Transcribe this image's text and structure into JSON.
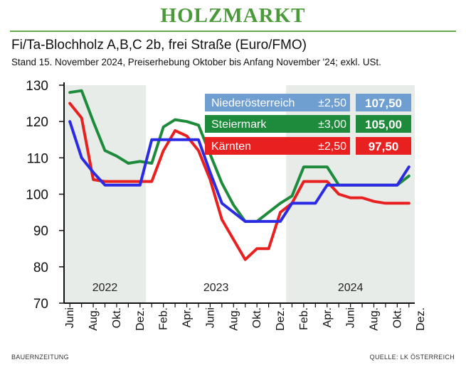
{
  "header": {
    "title": "HOLZMARKT"
  },
  "footer": {
    "left": "BAUERNZEITUNG",
    "right": "QUELLE: LK ÖSTERREICH"
  },
  "chart_data": {
    "type": "line",
    "title": "Fi/Ta-Blochholz A,B,C 2b, frei Straße (Euro/FMO)",
    "subtitle": "Stand 15. November 2024, Preiserhebung Oktober bis Anfang November '24; exkl. USt.",
    "xlabel": "",
    "ylabel": "",
    "ylim": [
      70,
      130
    ],
    "yticks": [
      "70",
      "80",
      "90",
      "100",
      "110",
      "120",
      "130"
    ],
    "x_labels": [
      "Juni",
      "Aug.",
      "Okt.",
      "Dez.",
      "Feb.",
      "Apr.",
      "Juni",
      "Aug.",
      "Okt.",
      "Dez.",
      "Feb.",
      "Apr.",
      "Juni",
      "Aug.",
      "Okt.",
      "Dez."
    ],
    "year_labels": [
      "2022",
      "2023",
      "2024"
    ],
    "grid": false,
    "legend_position": "top-right",
    "series": [
      {
        "name": "Niederösterreich",
        "range": "±2,50",
        "current": "107,50",
        "color": "#2b2be6",
        "legend_color": "#6f9ed1",
        "x": [
          0,
          1,
          2,
          3,
          4,
          5,
          6,
          7,
          8,
          9,
          10,
          11,
          12,
          13,
          14,
          15,
          16,
          17,
          18,
          19,
          20,
          21,
          22,
          23,
          24,
          25,
          26,
          27,
          28,
          29
        ],
        "values": [
          120,
          110,
          106,
          102.5,
          102.5,
          102.5,
          102.5,
          115,
          115,
          115,
          115,
          115,
          106,
          97.5,
          95,
          92.5,
          92.5,
          92.5,
          92.5,
          97.5,
          97.5,
          97.5,
          102.5,
          102.5,
          102.5,
          102.5,
          102.5,
          102.5,
          102.5,
          107.5
        ]
      },
      {
        "name": "Steiermark",
        "range": "±3,00",
        "current": "105,00",
        "color": "#1e8b3c",
        "legend_color": "#1e8b3c",
        "x": [
          0,
          1,
          2,
          3,
          4,
          5,
          6,
          7,
          8,
          9,
          10,
          11,
          12,
          13,
          14,
          15,
          16,
          17,
          18,
          19,
          20,
          21,
          22,
          23,
          24,
          25,
          26,
          27,
          28,
          29
        ],
        "values": [
          128,
          128.5,
          120,
          112,
          110.5,
          108.5,
          109,
          108.5,
          118.5,
          120.5,
          120,
          119,
          111,
          103,
          97,
          92.5,
          92.5,
          95,
          97.5,
          99.5,
          107.5,
          107.5,
          107.5,
          102.5,
          102.5,
          102.5,
          102.5,
          102.5,
          102.5,
          105
        ]
      },
      {
        "name": "Kärnten",
        "range": "±2,50",
        "current": "97,50",
        "color": "#e82020",
        "legend_color": "#e82020",
        "x": [
          0,
          1,
          2,
          3,
          4,
          5,
          6,
          7,
          8,
          9,
          10,
          11,
          12,
          13,
          14,
          15,
          16,
          17,
          18,
          19,
          20,
          21,
          22,
          23,
          24,
          25,
          26,
          27,
          28,
          29
        ],
        "values": [
          125,
          121,
          104,
          103.5,
          103.5,
          103.5,
          103.5,
          103.5,
          112,
          117.5,
          116,
          112,
          104,
          93,
          87.5,
          82,
          85,
          85,
          95,
          97.5,
          103.5,
          103.5,
          103.5,
          100,
          99,
          99,
          98,
          97.5,
          97.5,
          97.5
        ]
      }
    ]
  }
}
